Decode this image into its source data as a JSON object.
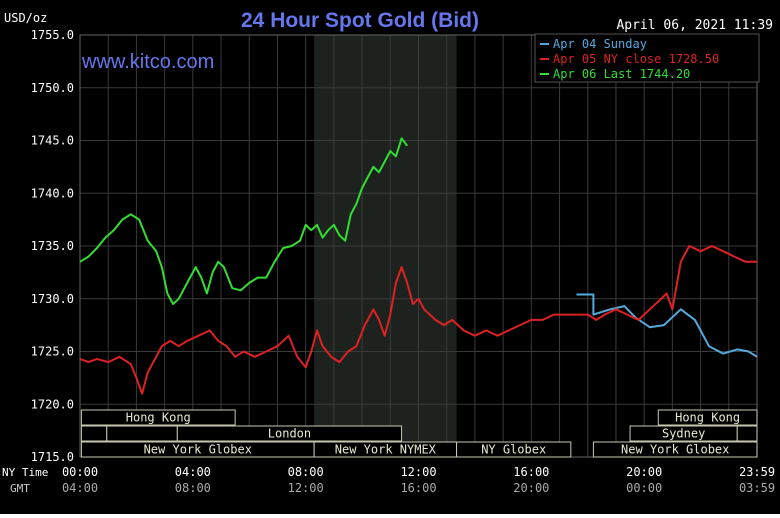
{
  "header": {
    "title": "24 Hour Spot Gold (Bid)",
    "timestamp": "April 06, 2021 11:39",
    "unit": "USD/oz",
    "watermark": "www.kitco.com"
  },
  "axis_labels": {
    "nytime": "NY Time",
    "gmt": "GMT"
  },
  "chart_data": {
    "type": "line",
    "title": "24 Hour Spot Gold (Bid)",
    "ylabel": "USD/oz",
    "ylim": [
      1715,
      1755
    ],
    "y_ticks": [
      "1755.0",
      "1750.0",
      "1745.0",
      "1740.0",
      "1735.0",
      "1730.0",
      "1725.0",
      "1720.0",
      "1715.0"
    ],
    "y_tick_values": [
      1755,
      1750,
      1745,
      1740,
      1735,
      1730,
      1725,
      1720,
      1715
    ],
    "xlim": [
      0,
      24
    ],
    "x_tick_hours": [
      0,
      4,
      8,
      12,
      16,
      20,
      24
    ],
    "x_ticks_ny": [
      "00:00",
      "04:00",
      "08:00",
      "12:00",
      "16:00",
      "20:00",
      "23:59"
    ],
    "x_ticks_gmt": [
      "04:00",
      "08:00",
      "12:00",
      "16:00",
      "20:00",
      "00:00",
      "03:59"
    ],
    "grid": true,
    "legend_position": "top-right",
    "legend": [
      {
        "label": "Apr 04 Sunday",
        "color": "#55aadd"
      },
      {
        "label": "Apr 05 NY close 1728.50",
        "color": "#dd2222"
      },
      {
        "label": "Apr 06 Last 1744.20",
        "color": "#33dd33"
      }
    ],
    "sessions": {
      "row1": [
        {
          "label": "Hong Kong",
          "start": 0.05,
          "end": 5.5
        },
        {
          "label": "Hong Kong",
          "start": 20.5,
          "end": 24
        }
      ],
      "row2": [
        {
          "label": "",
          "start": 0.05,
          "end": 0.95
        },
        {
          "label": "",
          "start": 0.95,
          "end": 3.45
        },
        {
          "label": "London",
          "start": 3.45,
          "end": 11.4
        },
        {
          "label": "Sydney",
          "start": 19.5,
          "end": 23.3
        },
        {
          "label": "",
          "start": 23.3,
          "end": 24
        }
      ],
      "row3": [
        {
          "label": "New York Globex",
          "start": 0.05,
          "end": 8.3
        },
        {
          "label": "New York NYMEX",
          "start": 8.3,
          "end": 13.35
        },
        {
          "label": "NY Globex",
          "start": 13.35,
          "end": 17.4
        },
        {
          "label": "New York Globex",
          "start": 18.2,
          "end": 24
        }
      ]
    },
    "highlight": {
      "start": 8.3,
      "end": 13.35
    },
    "series": [
      {
        "name": "Apr 04 Sunday",
        "color": "#55aadd",
        "x": [
          17.6,
          18.2,
          18.2,
          18.8,
          19.3,
          19.7,
          20.2,
          20.7,
          21.3,
          21.8,
          22.3,
          22.8,
          23.3,
          23.7,
          24.0
        ],
        "y": [
          1730.4,
          1730.4,
          1728.5,
          1729.0,
          1729.3,
          1728.2,
          1727.3,
          1727.5,
          1729.0,
          1728.0,
          1725.5,
          1724.8,
          1725.2,
          1725.0,
          1724.5
        ]
      },
      {
        "name": "Apr 05 NY close 1728.50",
        "color": "#dd2222",
        "x": [
          0.0,
          0.3,
          0.6,
          1.0,
          1.4,
          1.8,
          2.0,
          2.2,
          2.4,
          2.6,
          2.9,
          3.2,
          3.5,
          3.8,
          4.2,
          4.6,
          4.9,
          5.2,
          5.5,
          5.8,
          6.2,
          6.6,
          7.0,
          7.4,
          7.7,
          8.0,
          8.2,
          8.4,
          8.6,
          8.9,
          9.2,
          9.5,
          9.8,
          10.1,
          10.4,
          10.6,
          10.8,
          11.0,
          11.2,
          11.4,
          11.6,
          11.8,
          12.0,
          12.2,
          12.4,
          12.6,
          12.9,
          13.2,
          13.6,
          14.0,
          14.4,
          14.8,
          15.2,
          15.6,
          16.0,
          16.4,
          16.8,
          17.2,
          17.6,
          18.0,
          18.3,
          18.6,
          19.0,
          19.4,
          19.8,
          20.2,
          20.6,
          20.8,
          21.0,
          21.3,
          21.6,
          22.0,
          22.4,
          22.8,
          23.2,
          23.6,
          24.0
        ],
        "y": [
          1724.3,
          1724.0,
          1724.3,
          1724.0,
          1724.5,
          1723.8,
          1722.5,
          1721.0,
          1723.0,
          1724.0,
          1725.5,
          1726.0,
          1725.5,
          1726.0,
          1726.5,
          1727.0,
          1726.0,
          1725.5,
          1724.5,
          1725.0,
          1724.5,
          1725.0,
          1725.5,
          1726.5,
          1724.5,
          1723.5,
          1725.0,
          1727.0,
          1725.5,
          1724.5,
          1724.0,
          1725.0,
          1725.5,
          1727.5,
          1729.0,
          1728.0,
          1726.5,
          1728.5,
          1731.5,
          1733.0,
          1731.5,
          1729.5,
          1730.0,
          1729.0,
          1728.5,
          1728.0,
          1727.5,
          1728.0,
          1727.0,
          1726.5,
          1727.0,
          1726.5,
          1727.0,
          1727.5,
          1728.0,
          1728.0,
          1728.5,
          1728.5,
          1728.5,
          1728.5,
          1728.0,
          1728.5,
          1729.0,
          1728.5,
          1728.0,
          1729.0,
          1730.0,
          1730.5,
          1729.0,
          1733.5,
          1735.0,
          1734.5,
          1735.0,
          1734.5,
          1734.0,
          1733.5,
          1733.5
        ]
      },
      {
        "name": "Apr 06 Last 1744.20",
        "color": "#33dd33",
        "x": [
          0.0,
          0.3,
          0.6,
          0.9,
          1.2,
          1.5,
          1.8,
          2.1,
          2.4,
          2.7,
          2.9,
          3.1,
          3.3,
          3.5,
          3.8,
          4.1,
          4.3,
          4.5,
          4.7,
          4.9,
          5.1,
          5.4,
          5.7,
          6.0,
          6.3,
          6.6,
          6.9,
          7.2,
          7.5,
          7.8,
          8.0,
          8.2,
          8.4,
          8.6,
          8.8,
          9.0,
          9.2,
          9.4,
          9.6,
          9.8,
          10.0,
          10.2,
          10.4,
          10.6,
          10.8,
          11.0,
          11.2,
          11.4,
          11.6
        ],
        "y": [
          1733.5,
          1734.0,
          1734.8,
          1735.8,
          1736.5,
          1737.5,
          1738.0,
          1737.5,
          1735.5,
          1734.5,
          1733.0,
          1730.5,
          1729.5,
          1730.0,
          1731.5,
          1733.0,
          1732.0,
          1730.5,
          1732.5,
          1733.5,
          1733.0,
          1731.0,
          1730.8,
          1731.5,
          1732.0,
          1732.0,
          1733.5,
          1734.8,
          1735.0,
          1735.5,
          1737.0,
          1736.5,
          1737.0,
          1735.8,
          1736.5,
          1737.0,
          1736.0,
          1735.5,
          1738.0,
          1739.0,
          1740.5,
          1741.5,
          1742.5,
          1742.0,
          1743.0,
          1744.0,
          1743.5,
          1745.2,
          1744.5
        ]
      }
    ]
  }
}
